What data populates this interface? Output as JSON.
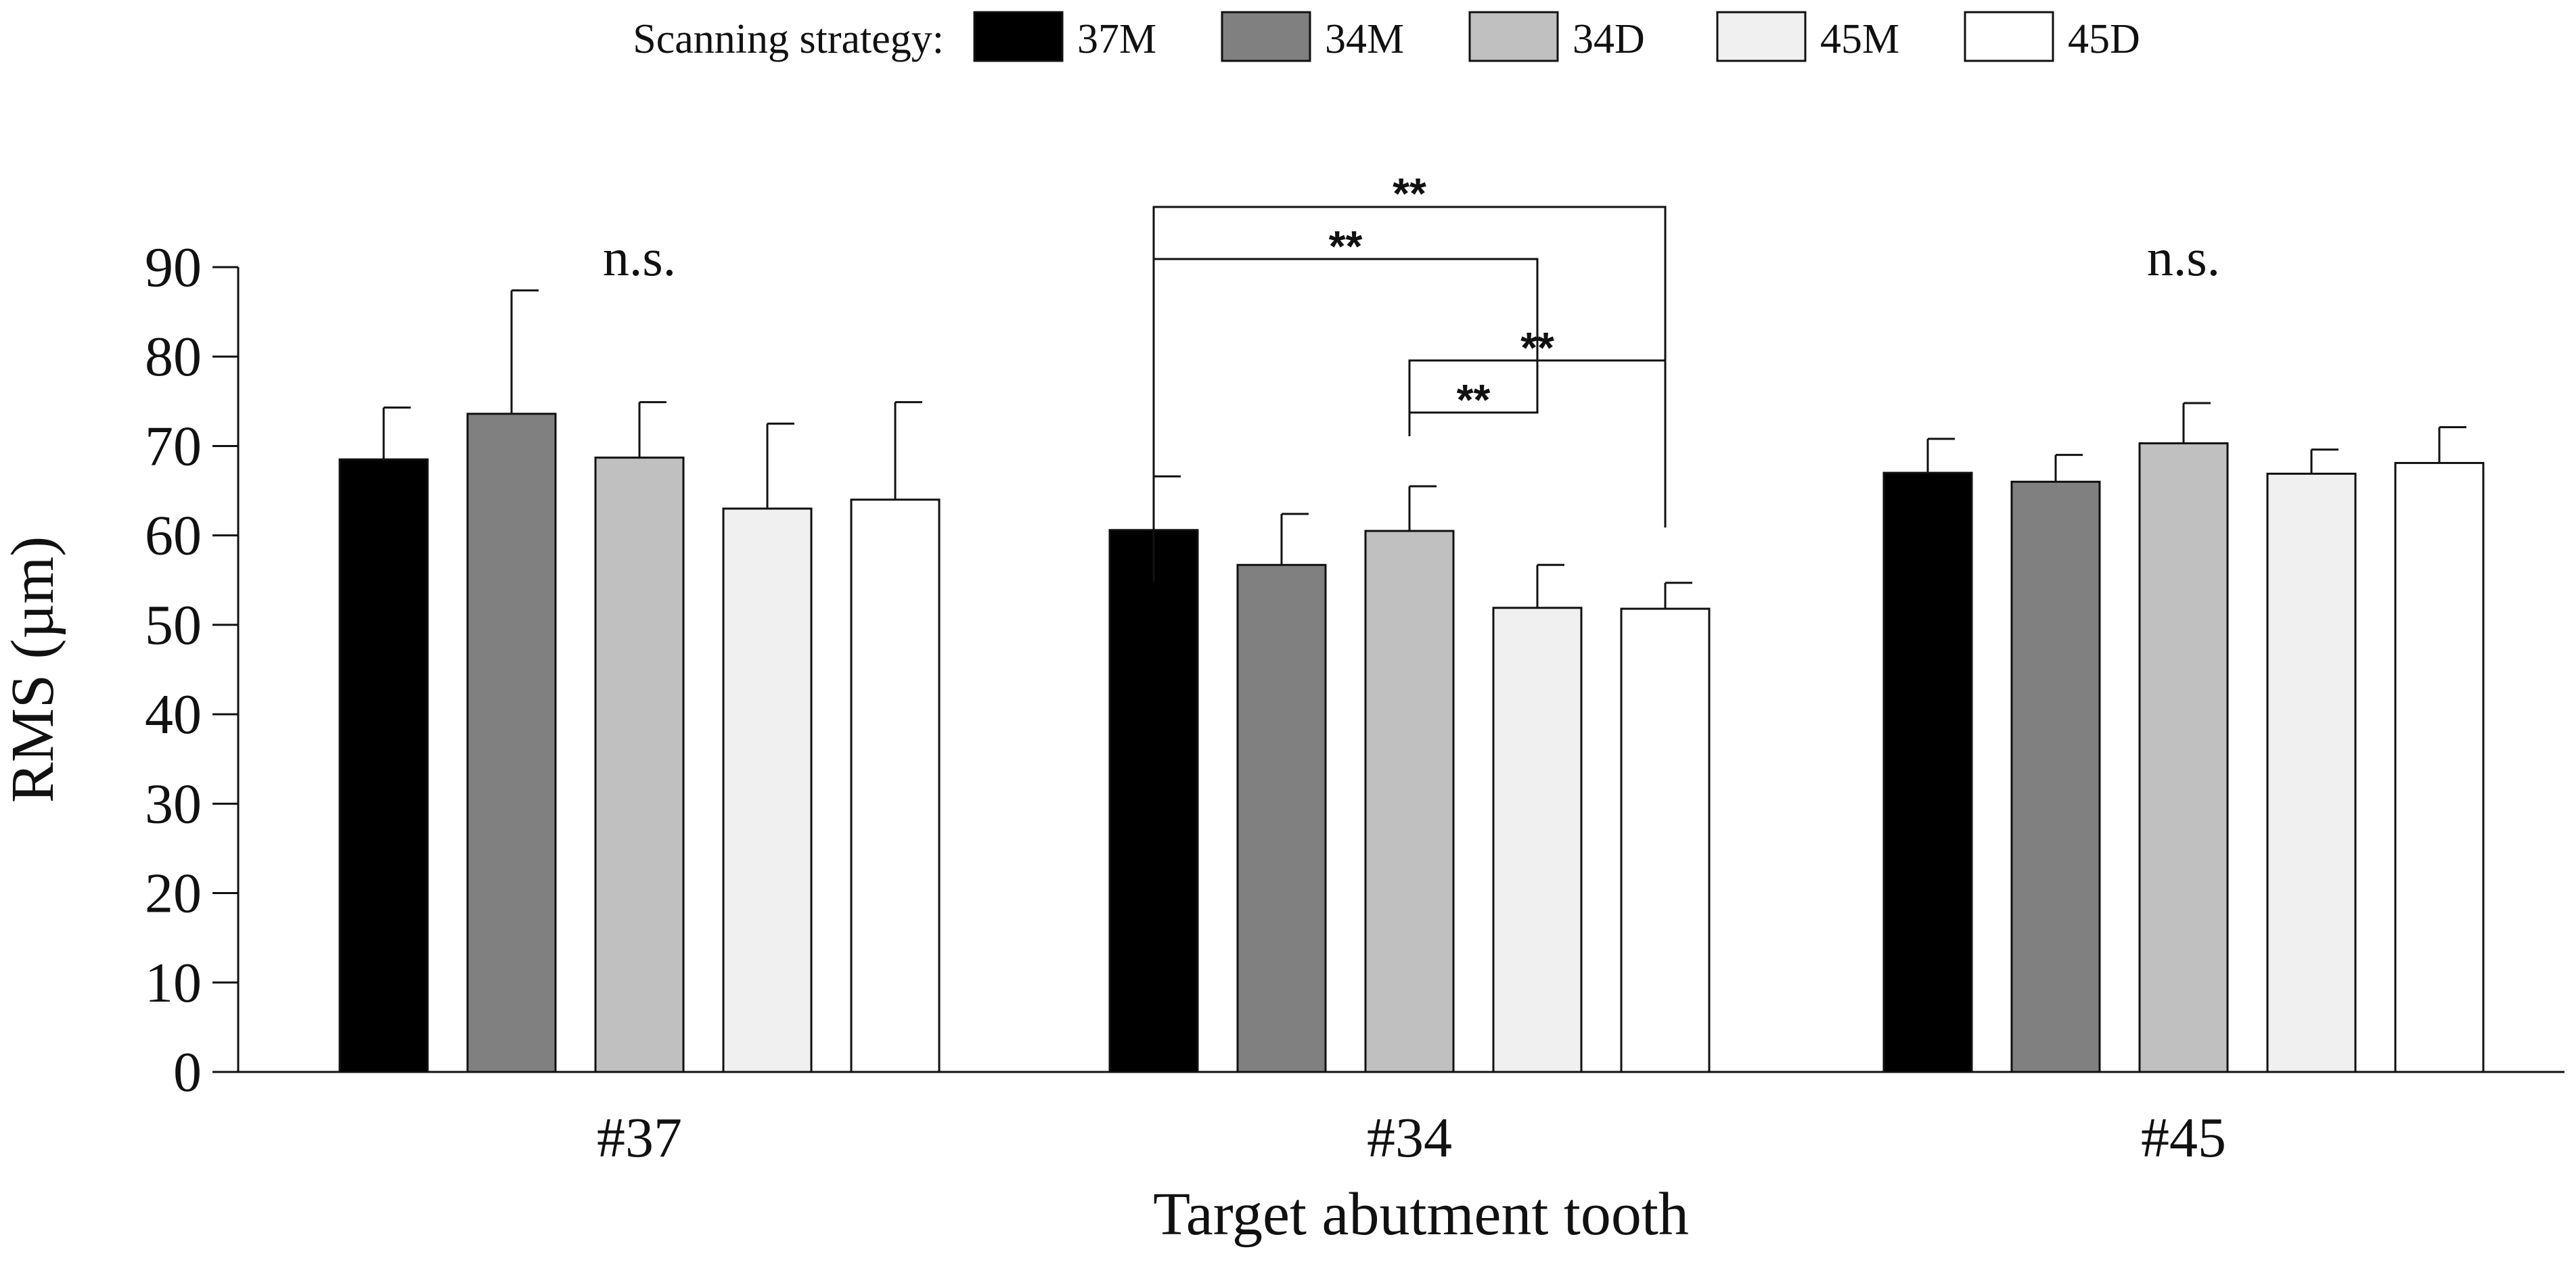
{
  "chart_data": {
    "type": "bar",
    "title": "",
    "legend": {
      "title": "Scanning strategy:",
      "position": "top-center"
    },
    "xlabel": "Target abutment tooth",
    "ylabel": "RMS (µm)",
    "ylim": [
      0,
      90
    ],
    "yticks": [
      0,
      10,
      20,
      30,
      40,
      50,
      60,
      70,
      80,
      90
    ],
    "categories": [
      "#37",
      "#34",
      "#45"
    ],
    "series": [
      {
        "name": "37M",
        "color": "#000000",
        "values": [
          68.5,
          60.6,
          67.0
        ],
        "errors": [
          5.8,
          6.0,
          3.8
        ]
      },
      {
        "name": "34M",
        "color": "#808080",
        "values": [
          73.6,
          56.7,
          66.0
        ],
        "errors": [
          13.8,
          5.7,
          3.0
        ]
      },
      {
        "name": "34D",
        "color": "#c0c0c0",
        "values": [
          68.7,
          60.5,
          70.3
        ],
        "errors": [
          6.2,
          5.0,
          4.5
        ]
      },
      {
        "name": "45M",
        "color": "#f0f0f0",
        "values": [
          63.0,
          51.9,
          66.9
        ],
        "errors": [
          9.5,
          4.8,
          2.7
        ]
      },
      {
        "name": "45D",
        "color": "#ffffff",
        "values": [
          64.0,
          51.8,
          68.1
        ],
        "errors": [
          10.9,
          2.9,
          4.0
        ]
      }
    ],
    "group_annotations": [
      {
        "category_index": 0,
        "text": "n.s."
      },
      {
        "category_index": 1,
        "text": ""
      },
      {
        "category_index": 2,
        "text": "n.s."
      }
    ],
    "significance": [
      {
        "category_index": 1,
        "from_series": 0,
        "to_series": 4,
        "text": "**",
        "level": 0
      },
      {
        "category_index": 1,
        "from_series": 0,
        "to_series": 3,
        "text": "**",
        "level": 1
      },
      {
        "category_index": 1,
        "from_series": 2,
        "to_series": 4,
        "text": "**",
        "level": 2
      },
      {
        "category_index": 1,
        "from_series": 2,
        "to_series": 3,
        "text": "**",
        "level": 3
      }
    ]
  }
}
